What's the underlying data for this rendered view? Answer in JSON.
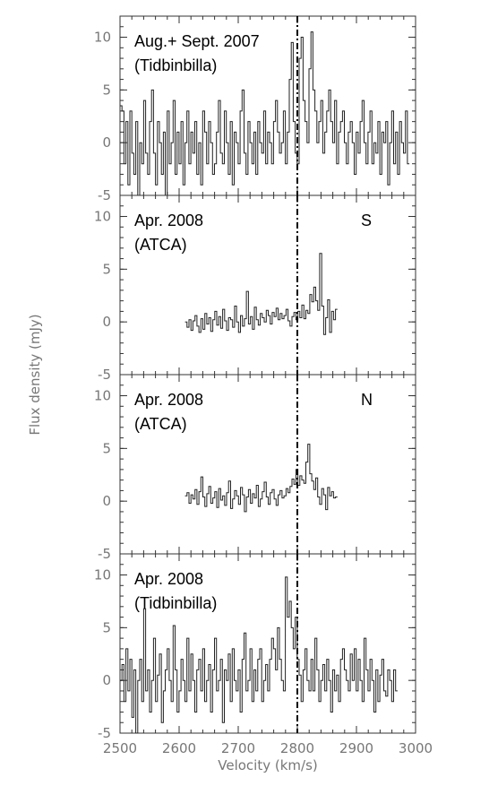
{
  "chart_data": {
    "type": "line",
    "style": "step",
    "xlabel": "Velocity (km/s)",
    "ylabel": "Flux density (mJy)",
    "xlim": [
      2500,
      3000
    ],
    "ylim": [
      -5,
      12
    ],
    "xticks": [
      2500,
      2600,
      2700,
      2800,
      2900,
      3000
    ],
    "yticks": [
      -5,
      0,
      5,
      10
    ],
    "reference_velocity": 2800,
    "panels": [
      {
        "label_lines": [
          "Aug.+ Sept. 2007",
          "(Tidbinbilla)"
        ],
        "corner_label": "",
        "x_start": 2500,
        "x_step": 3.33,
        "values": [
          3.5,
          3,
          -2,
          2,
          -4,
          3,
          -1,
          -3,
          2,
          -5,
          0,
          -2,
          4,
          -1,
          -3,
          2,
          5,
          -1,
          -4,
          2,
          0,
          -3,
          1,
          -5,
          3,
          -2,
          0,
          4,
          -3,
          1,
          -2,
          2,
          -4,
          0,
          3,
          -2,
          1,
          -1,
          2,
          -3,
          0,
          -4,
          3,
          1,
          -2,
          2,
          0,
          -3,
          -2,
          1,
          4,
          -1,
          -2,
          3,
          0,
          -3,
          2,
          -4,
          1,
          0,
          -2,
          3,
          5,
          -1,
          -3,
          2,
          0,
          -2,
          1,
          -3,
          2,
          0,
          -1,
          3,
          -2,
          1,
          0,
          -2,
          2,
          4,
          1,
          -1,
          0,
          3,
          -2,
          1,
          6,
          9.5,
          2,
          -1,
          -2,
          8,
          10,
          4,
          2,
          0,
          7,
          10.5,
          5,
          3,
          0,
          2,
          4,
          -1,
          1,
          3,
          5,
          2,
          0,
          4,
          -2,
          1,
          2,
          3,
          0,
          -2,
          1,
          2,
          0,
          -3,
          1,
          -1,
          2,
          4,
          0,
          -2,
          1,
          3,
          -2,
          0,
          -1,
          2,
          -3,
          1,
          0,
          2,
          -4,
          0,
          3,
          -2,
          1,
          -3,
          2,
          0,
          -1,
          3,
          -2
        ],
        "x_end": 3000
      },
      {
        "label_lines": [
          "Apr. 2008",
          "(ATCA)"
        ],
        "corner_label": "S",
        "x_start": 2610,
        "x_step": 3.35,
        "values": [
          0,
          -0.5,
          0.2,
          -0.8,
          0.1,
          0.6,
          -0.4,
          -1,
          0.3,
          -0.7,
          0.8,
          -0.2,
          0.4,
          -0.9,
          0.2,
          1,
          -0.3,
          0.5,
          -0.6,
          1.2,
          0.1,
          -0.8,
          0.4,
          0.2,
          -0.5,
          1.5,
          0,
          -1,
          0.6,
          -0.4,
          0.3,
          2.9,
          -0.2,
          0.5,
          -0.7,
          1.4,
          0.2,
          -0.3,
          0.8,
          0.4,
          0,
          1.1,
          0.6,
          -0.2,
          0.9,
          0.5,
          1.3,
          0.2,
          0.8,
          0.3,
          0.6,
          1.2,
          0.1,
          -0.4,
          0.5,
          0.9,
          0.2,
          1,
          0.4,
          1.6,
          0.3,
          1.1,
          0.8,
          2.6,
          1.9,
          3.3,
          2,
          1.1,
          6.5,
          1.5,
          -1.2,
          0.4,
          2.1,
          -1,
          1,
          0.2,
          1.2
        ],
        "x_end": 2882
      },
      {
        "label_lines": [
          "Apr. 2008",
          "(ATCA)"
        ],
        "corner_label": "N",
        "x_start": 2610,
        "x_step": 3.35,
        "values": [
          0.5,
          0.8,
          -0.2,
          0.6,
          0.2,
          1.1,
          -0.3,
          0.9,
          2.3,
          0.4,
          -0.5,
          0.7,
          1.4,
          -0.2,
          0.3,
          0.9,
          -0.6,
          1.2,
          0.1,
          0.5,
          -0.4,
          0.8,
          1.9,
          -0.7,
          0.2,
          1,
          0.5,
          -0.3,
          1.3,
          0.6,
          -1,
          0.4,
          1.1,
          -0.2,
          0.7,
          0.3,
          1.5,
          -0.5,
          0.2,
          0.9,
          1.8,
          0.4,
          -0.3,
          0.8,
          1.1,
          0.2,
          -0.4,
          0.6,
          1,
          0.3,
          0.5,
          1.2,
          0.8,
          1.4,
          2.1,
          1.6,
          3,
          1.5,
          2.4,
          2,
          1.7,
          3.7,
          5.4,
          2.6,
          1.9,
          1.1,
          2.2,
          0.4,
          -0.3,
          1.2,
          0.6,
          -0.8,
          1.3,
          0.5,
          0.9,
          0.3,
          0.4
        ],
        "x_end": 2882
      },
      {
        "label_lines": [
          "Apr. 2008",
          "(Tidbinbilla)"
        ],
        "corner_label": "",
        "x_start": 2500,
        "x_step": 3.33,
        "values": [
          0,
          1.5,
          -2,
          3,
          -1,
          2,
          -3.5,
          1,
          -5,
          0,
          2,
          -2,
          6.8,
          -1,
          1,
          -3,
          0,
          4,
          -2,
          0.5,
          2.5,
          -4,
          -1,
          1,
          3,
          0,
          -2,
          5.2,
          1,
          -3,
          -1,
          2,
          0,
          -2,
          4,
          -1,
          2.5,
          0,
          -3,
          1,
          2,
          -1,
          3,
          -2,
          0,
          1.5,
          -3,
          1,
          4,
          -1,
          0,
          2,
          -4,
          1,
          0,
          2.5,
          -2,
          3,
          0,
          -1,
          1,
          -3,
          2,
          4.5,
          -1,
          0,
          3,
          -2,
          1,
          -1,
          2,
          3,
          -2,
          0,
          1.5,
          -1,
          2,
          4,
          3,
          1,
          5,
          2,
          0,
          -1,
          9.8,
          6,
          7.5,
          5,
          3,
          6,
          2,
          0.5,
          -2,
          1,
          3,
          0,
          -1,
          2,
          -1,
          4,
          1,
          -2,
          0,
          1.5,
          -1,
          2,
          0,
          -3,
          1,
          -1,
          0.5,
          -2,
          2,
          3,
          1,
          0,
          -1,
          2.5,
          0,
          3,
          -1,
          2,
          0,
          -2,
          4,
          1,
          -1,
          2,
          0,
          -3,
          1,
          -2,
          0.5,
          2,
          -1,
          -1.5,
          1,
          0,
          -2,
          1,
          -1
        ]
      }
    ]
  }
}
